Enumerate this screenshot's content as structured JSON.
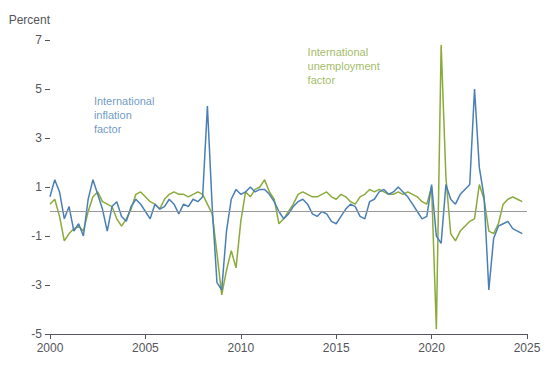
{
  "chart_data": {
    "type": "line",
    "ylabel": "Percent",
    "xlim": [
      2000,
      2025
    ],
    "xticks": [
      2000,
      2005,
      2010,
      2015,
      2020,
      2025
    ],
    "ylim": [
      -5,
      7
    ],
    "yticks": [
      -5,
      -3,
      -1,
      1,
      3,
      5,
      7
    ],
    "grid": false,
    "hlines": [
      0
    ],
    "x": [
      2000.0,
      2000.25,
      2000.5,
      2000.75,
      2001.0,
      2001.25,
      2001.5,
      2001.75,
      2002.0,
      2002.25,
      2002.5,
      2002.75,
      2003.0,
      2003.25,
      2003.5,
      2003.75,
      2004.0,
      2004.25,
      2004.5,
      2004.75,
      2005.0,
      2005.25,
      2005.5,
      2005.75,
      2006.0,
      2006.25,
      2006.5,
      2006.75,
      2007.0,
      2007.25,
      2007.5,
      2007.75,
      2008.0,
      2008.25,
      2008.5,
      2008.75,
      2009.0,
      2009.25,
      2009.5,
      2009.75,
      2010.0,
      2010.25,
      2010.5,
      2010.75,
      2011.0,
      2011.25,
      2011.5,
      2011.75,
      2012.0,
      2012.25,
      2012.5,
      2012.75,
      2013.0,
      2013.25,
      2013.5,
      2013.75,
      2014.0,
      2014.25,
      2014.5,
      2014.75,
      2015.0,
      2015.25,
      2015.5,
      2015.75,
      2016.0,
      2016.25,
      2016.5,
      2016.75,
      2017.0,
      2017.25,
      2017.5,
      2017.75,
      2018.0,
      2018.25,
      2018.5,
      2018.75,
      2019.0,
      2019.25,
      2019.5,
      2019.75,
      2020.0,
      2020.25,
      2020.5,
      2020.75,
      2021.0,
      2021.25,
      2021.5,
      2021.75,
      2022.0,
      2022.25,
      2022.5,
      2022.75,
      2023.0,
      2023.25,
      2023.5,
      2023.75,
      2024.0,
      2024.25,
      2024.5,
      2024.75
    ],
    "series": [
      {
        "color": "#4a7fb5",
        "values": [
          0.6,
          1.3,
          0.8,
          -0.3,
          0.2,
          -0.8,
          -0.5,
          -1.0,
          0.5,
          1.3,
          0.7,
          0.1,
          -0.8,
          0.2,
          0.4,
          -0.2,
          -0.4,
          0.2,
          0.5,
          0.3,
          0.0,
          -0.3,
          0.3,
          0.1,
          0.2,
          0.5,
          0.3,
          -0.1,
          0.3,
          0.2,
          0.5,
          0.4,
          0.6,
          4.3,
          0.2,
          -2.9,
          -3.2,
          -0.8,
          0.5,
          0.9,
          0.7,
          0.8,
          1.0,
          0.8,
          0.9,
          0.9,
          0.7,
          0.4,
          0.0,
          -0.3,
          -0.1,
          0.2,
          0.4,
          0.5,
          0.3,
          -0.1,
          -0.2,
          0.0,
          -0.1,
          -0.4,
          -0.5,
          -0.2,
          0.1,
          0.3,
          0.2,
          -0.2,
          -0.3,
          0.4,
          0.5,
          0.8,
          0.9,
          0.7,
          0.8,
          1.0,
          0.8,
          0.6,
          0.3,
          0.0,
          -0.3,
          -0.2,
          1.1,
          -1.0,
          -1.3,
          1.1,
          0.5,
          0.3,
          0.7,
          0.9,
          1.1,
          5.0,
          1.8,
          0.6,
          -3.2,
          -1.1,
          -0.6,
          -0.5,
          -0.4,
          -0.7,
          -0.8,
          -0.9
        ]
      },
      {
        "color": "#8aaa3a",
        "values": [
          0.3,
          0.5,
          -0.2,
          -1.2,
          -0.9,
          -0.7,
          -0.6,
          -0.8,
          0.0,
          0.6,
          0.8,
          0.4,
          0.3,
          0.2,
          -0.3,
          -0.6,
          -0.3,
          0.1,
          0.7,
          0.8,
          0.6,
          0.4,
          0.3,
          0.1,
          0.5,
          0.7,
          0.8,
          0.7,
          0.7,
          0.6,
          0.7,
          0.8,
          0.7,
          0.3,
          -0.1,
          -1.7,
          -3.4,
          -2.4,
          -1.6,
          -2.3,
          -0.4,
          0.8,
          0.6,
          0.9,
          1.0,
          1.3,
          0.8,
          0.5,
          -0.5,
          -0.3,
          0.0,
          0.3,
          0.7,
          0.8,
          0.7,
          0.6,
          0.6,
          0.7,
          0.8,
          0.6,
          0.5,
          0.7,
          0.6,
          0.4,
          0.3,
          0.6,
          0.7,
          0.9,
          0.8,
          0.9,
          0.8,
          0.7,
          0.7,
          0.8,
          0.7,
          0.8,
          0.7,
          0.6,
          0.4,
          0.3,
          1.0,
          -4.8,
          6.8,
          1.4,
          -0.9,
          -1.2,
          -0.8,
          -0.6,
          -0.4,
          -0.3,
          1.1,
          0.5,
          -0.8,
          -0.9,
          -0.5,
          0.3,
          0.5,
          0.6,
          0.5,
          0.4
        ]
      }
    ],
    "annotations": [
      {
        "text": "International\ninflation\nfactor",
        "x": 2002.3,
        "y": 4.8,
        "color": "#4a7fb5"
      },
      {
        "text": "International\nunemployment\nfactor",
        "x": 2013.5,
        "y": 6.8,
        "color": "#8aaa3a"
      }
    ]
  }
}
